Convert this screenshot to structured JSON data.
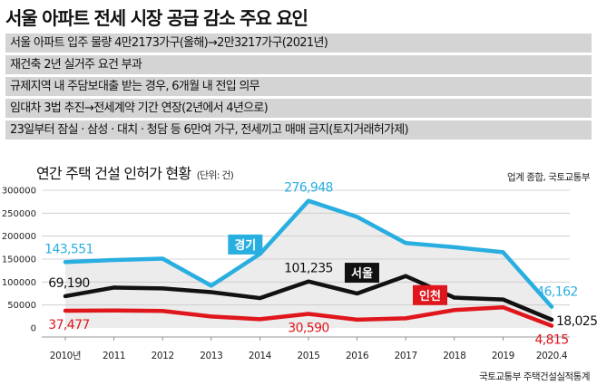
{
  "headline": "서울 아파트 전세 시장 공급 감소 주요 요인",
  "factors": [
    "서울 아파트 입주 물량 4만2173가구(올해)→2만3217가구(2021년)",
    "재건축 2년 실거주 요건 부과",
    "규제지역 내 주담보대출 받는 경우, 6개월 내 전입 의무",
    "임대차 3법 추진→전세계약 기간 연장(2년에서 4년으로)",
    "23일부터 잠실 · 삼성 · 대치 · 청담 등 6만여 가구, 전세끼고 매매 금지(토지거래허가제)"
  ],
  "source_top": "업계 종합, 국토교통부",
  "source_bottom": "국토교통부 주택건설실적통계",
  "chart_data": {
    "type": "line",
    "title": "연간 주택 건설 인허가 현황",
    "unit": "(단위: 건)",
    "x": [
      "2010년",
      "2011",
      "2012",
      "2013",
      "2014",
      "2015",
      "2016",
      "2017",
      "2018",
      "2019",
      "2020.4"
    ],
    "ylim": [
      0,
      300000
    ],
    "yticks": [
      0,
      50000,
      100000,
      150000,
      200000,
      250000,
      300000
    ],
    "ytick_labels": [
      "0",
      "50000",
      "100000",
      "150000",
      "200000",
      "250000",
      "300000"
    ],
    "grid": true,
    "series": [
      {
        "name": "경기",
        "color": "#29aee0",
        "values": [
          143551,
          148000,
          151000,
          92000,
          161000,
          276948,
          242000,
          185000,
          176000,
          165000,
          46162
        ],
        "labels": [
          {
            "index": 0,
            "text": "143,551",
            "pos": "above"
          },
          {
            "index": 5,
            "text": "276,948",
            "pos": "above"
          },
          {
            "index": 10,
            "text": "46,162",
            "pos": "left-above"
          }
        ],
        "name_box": {
          "index": 3.7,
          "pos": "above"
        }
      },
      {
        "name": "서울",
        "color": "#111111",
        "values": [
          69190,
          88000,
          86000,
          78000,
          65000,
          101235,
          75000,
          113000,
          66000,
          62000,
          18025
        ],
        "labels": [
          {
            "index": 0,
            "text": "69,190",
            "pos": "above"
          },
          {
            "index": 5,
            "text": "101,235",
            "pos": "above"
          },
          {
            "index": 10,
            "text": "18,025",
            "pos": "right"
          }
        ],
        "name_box": {
          "index": 6.1,
          "pos": "above"
        }
      },
      {
        "name": "인천",
        "color": "#e0161d",
        "values": [
          37477,
          38000,
          37000,
          25000,
          19000,
          30590,
          18000,
          21000,
          39000,
          45000,
          4815
        ],
        "labels": [
          {
            "index": 0,
            "text": "37,477",
            "pos": "below"
          },
          {
            "index": 5,
            "text": "30,590",
            "pos": "below"
          },
          {
            "index": 10,
            "text": "4,815",
            "pos": "below"
          }
        ],
        "name_box": {
          "index": 7.5,
          "pos": "above"
        }
      }
    ]
  }
}
